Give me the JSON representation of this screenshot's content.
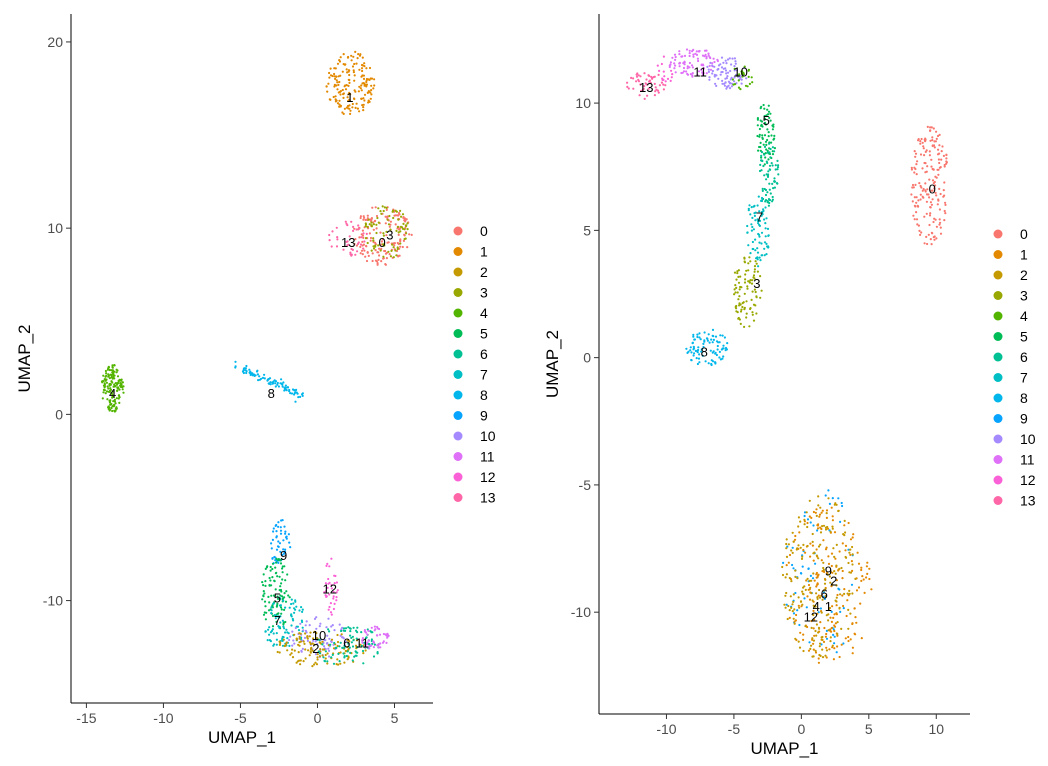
{
  "chart_data": [
    {
      "type": "scatter",
      "title": "",
      "xlabel": "UMAP_1",
      "ylabel": "UMAP_2",
      "xlim": [
        -16,
        7.5
      ],
      "ylim": [
        -15.5,
        21.5
      ],
      "xticks": [
        -15,
        -10,
        -5,
        0,
        5
      ],
      "yticks": [
        -10,
        0,
        10,
        20
      ],
      "legend": {
        "position": "right",
        "entries": [
          "0",
          "1",
          "2",
          "3",
          "4",
          "5",
          "6",
          "7",
          "8",
          "9",
          "10",
          "11",
          "12",
          "13"
        ]
      },
      "clusters": [
        {
          "id": "0",
          "cx": 4.2,
          "cy": 9.6,
          "sx": 1.2,
          "sy": 1.0,
          "n": 160,
          "shape": "ellipse"
        },
        {
          "id": "3",
          "cx": 4.5,
          "cy": 9.8,
          "sx": 0.9,
          "sy": 0.9,
          "n": 80,
          "shape": "ellipse"
        },
        {
          "id": "13",
          "cx": 2.0,
          "cy": 9.4,
          "sx": 0.8,
          "sy": 0.6,
          "n": 40,
          "shape": "ellipse"
        },
        {
          "id": "1",
          "cx": 2.1,
          "cy": 17.8,
          "sx": 1.0,
          "sy": 1.1,
          "n": 170,
          "shape": "ellipse"
        },
        {
          "id": "4",
          "cx": -13.3,
          "cy": 1.4,
          "sx": 0.45,
          "sy": 0.8,
          "n": 150,
          "shape": "ellipse"
        },
        {
          "id": "8",
          "cx": -3.2,
          "cy": 1.6,
          "sx": 1.6,
          "sy": 0.12,
          "n": 90,
          "shape": "line",
          "x0": -5.3,
          "y0": 2.6,
          "x1": -1.0,
          "y1": 1.0
        },
        {
          "id": "9",
          "cx": -2.4,
          "cy": -7.0,
          "sx": 0.4,
          "sy": 0.9,
          "n": 50,
          "shape": "ellipse"
        },
        {
          "id": "5",
          "cx": -2.7,
          "cy": -9.6,
          "sx": 0.6,
          "sy": 1.3,
          "n": 100,
          "shape": "ellipse"
        },
        {
          "id": "7",
          "cx": -2.2,
          "cy": -11.2,
          "sx": 0.9,
          "sy": 0.9,
          "n": 90,
          "shape": "ellipse"
        },
        {
          "id": "12",
          "cx": 0.9,
          "cy": -9.3,
          "sx": 0.3,
          "sy": 1.0,
          "n": 35,
          "shape": "ellipse"
        },
        {
          "id": "10",
          "cx": 0.0,
          "cy": -12.0,
          "sx": 1.3,
          "sy": 0.7,
          "n": 80,
          "shape": "ellipse"
        },
        {
          "id": "2",
          "cx": 0.2,
          "cy": -12.6,
          "sx": 1.9,
          "sy": 0.6,
          "n": 120,
          "shape": "ellipse"
        },
        {
          "id": "6",
          "cx": 1.9,
          "cy": -12.4,
          "sx": 1.4,
          "sy": 0.7,
          "n": 90,
          "shape": "ellipse"
        },
        {
          "id": "11",
          "cx": 3.7,
          "cy": -12.0,
          "sx": 0.6,
          "sy": 0.4,
          "n": 50,
          "shape": "ellipse"
        }
      ],
      "annotations": [
        {
          "text": "1",
          "x": 2.1,
          "y": 17.0
        },
        {
          "text": "13",
          "x": 2.0,
          "y": 9.2
        },
        {
          "text": "0",
          "x": 4.2,
          "y": 9.2
        },
        {
          "text": "3",
          "x": 4.7,
          "y": 9.6
        },
        {
          "text": "4",
          "x": -13.3,
          "y": 1.1
        },
        {
          "text": "8",
          "x": -3.0,
          "y": 1.1
        },
        {
          "text": "9",
          "x": -2.2,
          "y": -7.6
        },
        {
          "text": "12",
          "x": 0.8,
          "y": -9.4
        },
        {
          "text": "5",
          "x": -2.6,
          "y": -9.9
        },
        {
          "text": "7",
          "x": -2.6,
          "y": -11.1
        },
        {
          "text": "10",
          "x": 0.1,
          "y": -11.9
        },
        {
          "text": "2",
          "x": -0.1,
          "y": -12.6
        },
        {
          "text": "6",
          "x": 1.9,
          "y": -12.3
        },
        {
          "text": "11",
          "x": 2.9,
          "y": -12.3
        }
      ]
    },
    {
      "type": "scatter",
      "title": "",
      "xlabel": "UMAP_1",
      "ylabel": "UMAP_2",
      "xlim": [
        -15,
        12.5
      ],
      "ylim": [
        -14,
        13.5
      ],
      "xticks": [
        -10,
        -5,
        0,
        5,
        10
      ],
      "yticks": [
        -10,
        -5,
        0,
        5,
        10
      ],
      "legend": {
        "position": "right",
        "entries": [
          "0",
          "1",
          "2",
          "3",
          "4",
          "5",
          "6",
          "7",
          "8",
          "9",
          "10",
          "11",
          "12",
          "13"
        ]
      },
      "clusters": [
        {
          "id": "0",
          "cx": 9.5,
          "cy": 6.8,
          "sx": 0.9,
          "sy": 1.5,
          "n": 180,
          "shape": "ellipse"
        },
        {
          "id": "13",
          "cx": -11.5,
          "cy": 10.7,
          "sx": 0.9,
          "sy": 0.35,
          "n": 50,
          "shape": "ellipse"
        },
        {
          "id": "12",
          "cx": -10.2,
          "cy": 11.3,
          "sx": 0.5,
          "sy": 0.35,
          "n": 15,
          "shape": "ellipse"
        },
        {
          "id": "11",
          "cx": -8.0,
          "cy": 11.6,
          "sx": 1.2,
          "sy": 0.35,
          "n": 90,
          "shape": "ellipse"
        },
        {
          "id": "10",
          "cx": -5.5,
          "cy": 11.2,
          "sx": 1.0,
          "sy": 0.4,
          "n": 80,
          "shape": "ellipse"
        },
        {
          "id": "4",
          "cx": -4.4,
          "cy": 11.0,
          "sx": 0.5,
          "sy": 0.35,
          "n": 25,
          "shape": "ellipse"
        },
        {
          "id": "5",
          "cx": -2.6,
          "cy": 8.8,
          "sx": 0.45,
          "sy": 0.8,
          "n": 70,
          "shape": "ellipse"
        },
        {
          "id": "6",
          "cx": -2.4,
          "cy": 7.2,
          "sx": 0.45,
          "sy": 0.8,
          "n": 70,
          "shape": "ellipse"
        },
        {
          "id": "7",
          "cx": -3.2,
          "cy": 5.0,
          "sx": 0.55,
          "sy": 0.9,
          "n": 80,
          "shape": "ellipse"
        },
        {
          "id": "3",
          "cx": -4.0,
          "cy": 2.6,
          "sx": 0.7,
          "sy": 0.9,
          "n": 90,
          "shape": "ellipse"
        },
        {
          "id": "8",
          "cx": -7.0,
          "cy": 0.4,
          "sx": 1.0,
          "sy": 0.45,
          "n": 90,
          "shape": "ellipse"
        },
        {
          "id": "9",
          "cx": 1.5,
          "cy": -8.5,
          "sx": 1.8,
          "sy": 2.1,
          "n": 70,
          "shape": "ellipse"
        },
        {
          "id": "1",
          "cx": 2.0,
          "cy": -9.0,
          "sx": 2.0,
          "sy": 2.0,
          "n": 200,
          "shape": "ellipse"
        },
        {
          "id": "2",
          "cx": 1.3,
          "cy": -8.6,
          "sx": 1.8,
          "sy": 2.0,
          "n": 200,
          "shape": "ellipse"
        }
      ],
      "annotations": [
        {
          "text": "13",
          "x": -11.5,
          "y": 10.6
        },
        {
          "text": "11",
          "x": -7.5,
          "y": 11.2
        },
        {
          "text": "10",
          "x": -4.5,
          "y": 11.2
        },
        {
          "text": "5",
          "x": -2.6,
          "y": 9.3
        },
        {
          "text": "0",
          "x": 9.7,
          "y": 6.6
        },
        {
          "text": "7",
          "x": -3.1,
          "y": 5.5
        },
        {
          "text": "3",
          "x": -3.3,
          "y": 2.9
        },
        {
          "text": "8",
          "x": -7.2,
          "y": 0.2
        },
        {
          "text": "9",
          "x": 2.0,
          "y": -8.4
        },
        {
          "text": "2",
          "x": 2.4,
          "y": -8.8
        },
        {
          "text": "6",
          "x": 1.7,
          "y": -9.3
        },
        {
          "text": "4",
          "x": 1.1,
          "y": -9.8
        },
        {
          "text": "1",
          "x": 2.0,
          "y": -9.8
        },
        {
          "text": "12",
          "x": 0.7,
          "y": -10.2
        }
      ]
    }
  ],
  "colors": {
    "0": "#F8766D",
    "1": "#E38900",
    "2": "#C49A00",
    "3": "#99A800",
    "4": "#53B400",
    "5": "#00BC56",
    "6": "#00C094",
    "7": "#00BFC4",
    "8": "#00B6EB",
    "9": "#06A4FF",
    "10": "#A58AFF",
    "11": "#DF70F8",
    "12": "#FB61D7",
    "13": "#FF66A8"
  }
}
